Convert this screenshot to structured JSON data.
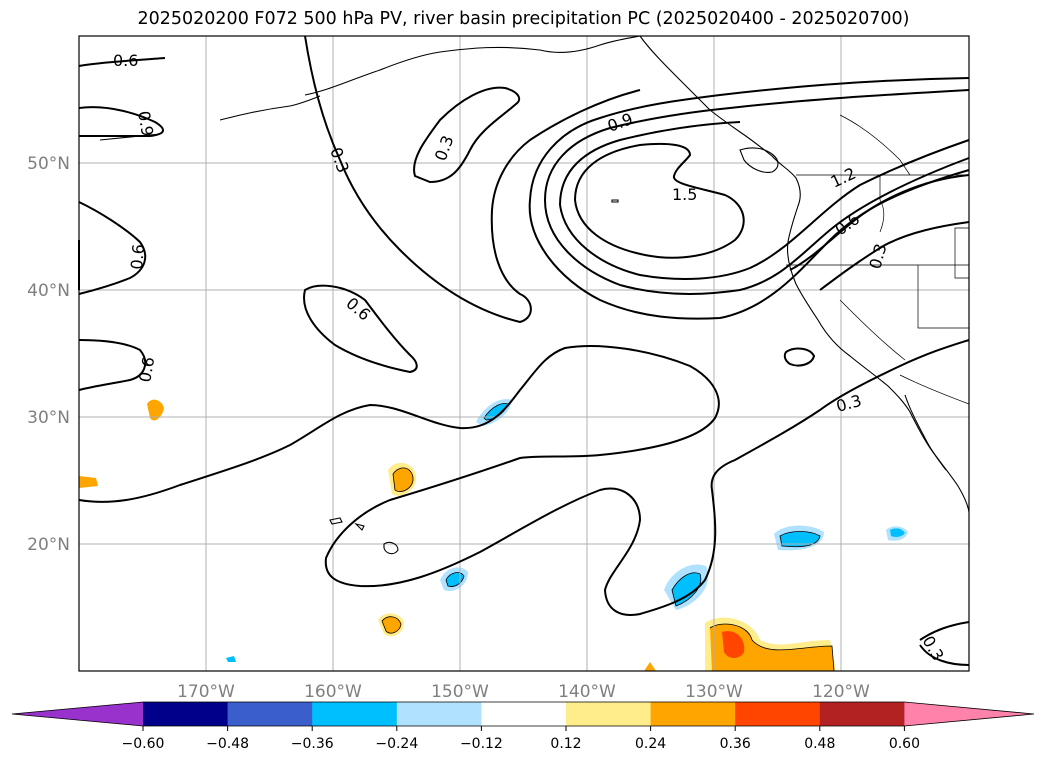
{
  "title": "2025020200 F072 500 hPa PV, river basin precipitation PC (2025020400 - 2025020700)",
  "map": {
    "lat_labels": [
      "50°N",
      "40°N",
      "30°N",
      "20°N"
    ],
    "lon_labels": [
      "170°W",
      "160°W",
      "150°W",
      "140°W",
      "130°W",
      "120°W"
    ],
    "grid": true,
    "contour_labels": [
      "0.6",
      "0.9",
      "0.3",
      "0.3",
      "0.9",
      "1.5",
      "1.2",
      "0.6",
      "0.3",
      "0.6",
      "0.6",
      "0.6",
      "0.3",
      "0.3"
    ],
    "filled_field": "river basin precipitation PC",
    "contour_field": "500 hPa PV"
  },
  "colorbar": {
    "ticks": [
      "−0.60",
      "−0.48",
      "−0.36",
      "−0.24",
      "−0.12",
      "0.12",
      "0.24",
      "0.36",
      "0.48",
      "0.60"
    ],
    "colors": [
      "#9932cc",
      "#00008b",
      "#3a5fcd",
      "#00bfff",
      "#b0e2ff",
      "#ffffff",
      "#ffec8b",
      "#ffa500",
      "#ff4500",
      "#b22222",
      "#ff82ab"
    ],
    "extend": "both"
  }
}
